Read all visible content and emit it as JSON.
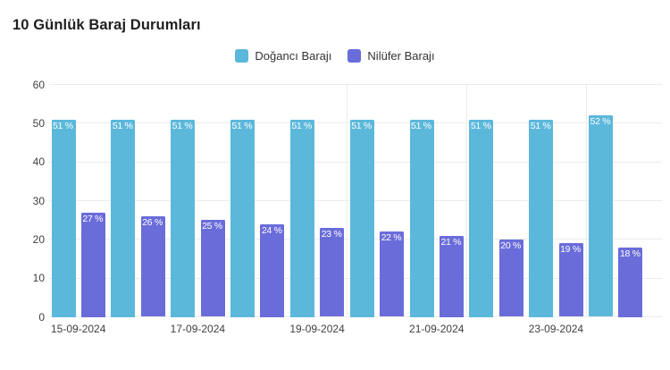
{
  "chart_data": {
    "type": "bar",
    "title": "10 Günlük Baraj Durumları",
    "groups": 10,
    "x_tick_labels": [
      "15-09-2024",
      "17-09-2024",
      "19-09-2024",
      "21-09-2024",
      "23-09-2024"
    ],
    "x_tick_group_indices": [
      0,
      2,
      4,
      6,
      8
    ],
    "series": [
      {
        "name": "Doğancı Barajı",
        "color": "#5cb8db",
        "values": [
          51,
          51,
          51,
          51,
          51,
          51,
          51,
          51,
          51,
          52
        ]
      },
      {
        "name": "Nilüfer Barajı",
        "color": "#6a6cda",
        "values": [
          27,
          26,
          25,
          24,
          23,
          22,
          21,
          20,
          19,
          18
        ]
      }
    ],
    "value_label_suffix": " %",
    "ylabel": "",
    "xlabel": "",
    "ylim": [
      0,
      60
    ],
    "yticks": [
      0,
      10,
      20,
      30,
      40,
      50,
      60
    ],
    "grid": true,
    "legend_position": "top"
  },
  "colors": {
    "series_1": "#5cb8db",
    "series_2": "#6a6cda",
    "gridline": "#ececec",
    "axis_text": "#404040",
    "legend_text": "#333333",
    "title_text": "#1f1f1f",
    "bar_value_text": "#ffffff",
    "background": "#ffffff"
  }
}
